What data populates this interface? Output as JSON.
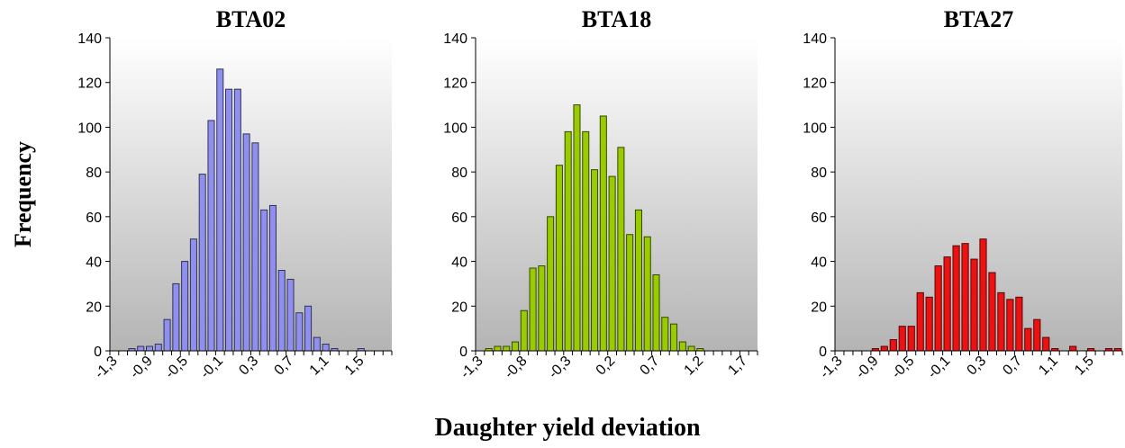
{
  "figure": {
    "ylabel": "Frequency",
    "xlabel": "Daughter yield deviation"
  },
  "chart_data": [
    {
      "type": "bar",
      "title": "BTA02",
      "xlabel": "Daughter yield deviation",
      "ylabel": "Frequency",
      "ylim": [
        0,
        140
      ],
      "yticks": [
        "0",
        "20",
        "40",
        "60",
        "80",
        "100",
        "120",
        "140"
      ],
      "xtick_labels": [
        "-1,3",
        "-0,9",
        "-0,5",
        "-0,1",
        "0,3",
        "0,7",
        "1,1",
        "1,5"
      ],
      "categories": [
        "-1,3",
        "-1,2",
        "-1,1",
        "-1,0",
        "-0,9",
        "-0,8",
        "-0,7",
        "-0,6",
        "-0,5",
        "-0,4",
        "-0,3",
        "-0,2",
        "-0,1",
        "0,0",
        "0,1",
        "0,2",
        "0,3",
        "0,4",
        "0,5",
        "0,6",
        "0,7",
        "0,8",
        "0,9",
        "1,0",
        "1,1",
        "1,2",
        "1,3",
        "1,4",
        "1,5",
        "1,6",
        "1,7",
        "1,8"
      ],
      "values": [
        0,
        0,
        1,
        2,
        2,
        3,
        14,
        30,
        40,
        50,
        79,
        103,
        126,
        117,
        117,
        97,
        93,
        63,
        65,
        36,
        32,
        17,
        20,
        6,
        3,
        1,
        0,
        0,
        1,
        0,
        0,
        0
      ],
      "bar_color": "#8f8fef",
      "grid": false,
      "legend": "none"
    },
    {
      "type": "bar",
      "title": "BTA18",
      "xlabel": "Daughter yield deviation",
      "ylabel": "Frequency",
      "ylim": [
        0,
        140
      ],
      "yticks": [
        "0",
        "20",
        "40",
        "60",
        "80",
        "100",
        "120",
        "140"
      ],
      "xtick_labels": [
        "-1,3",
        "-0,8",
        "-0,3",
        "0,2",
        "0,7",
        "1,2",
        "1,7"
      ],
      "categories": [
        "-1,3",
        "-1,2",
        "-1,1",
        "-1,0",
        "-0,9",
        "-0,8",
        "-0,7",
        "-0,6",
        "-0,5",
        "-0,4",
        "-0,3",
        "-0,2",
        "-0,1",
        "0,0",
        "0,1",
        "0,2",
        "0,3",
        "0,4",
        "0,5",
        "0,6",
        "0,7",
        "0,8",
        "0,9",
        "1,0",
        "1,1",
        "1,2",
        "1,3",
        "1,4",
        "1,5",
        "1,6",
        "1,7",
        "1,8"
      ],
      "values": [
        0,
        1,
        2,
        2,
        4,
        18,
        37,
        38,
        60,
        83,
        98,
        110,
        98,
        81,
        105,
        78,
        91,
        52,
        63,
        51,
        34,
        15,
        12,
        4,
        2,
        1,
        0,
        0,
        0,
        0,
        0,
        0
      ],
      "bar_color": "#99cc00",
      "grid": false,
      "legend": "none"
    },
    {
      "type": "bar",
      "title": "BTA27",
      "xlabel": "Daughter yield deviation",
      "ylabel": "Frequency",
      "ylim": [
        0,
        140
      ],
      "yticks": [
        "0",
        "20",
        "40",
        "60",
        "80",
        "100",
        "120",
        "140"
      ],
      "xtick_labels": [
        "-1,3",
        "-0,9",
        "-0,5",
        "-0,1",
        "0,3",
        "0,7",
        "1,1",
        "1,5"
      ],
      "categories": [
        "-1,3",
        "-1,2",
        "-1,1",
        "-1,0",
        "-0,9",
        "-0,8",
        "-0,7",
        "-0,6",
        "-0,5",
        "-0,4",
        "-0,3",
        "-0,2",
        "-0,1",
        "0,0",
        "0,1",
        "0,2",
        "0,3",
        "0,4",
        "0,5",
        "0,6",
        "0,7",
        "0,8",
        "0,9",
        "1,0",
        "1,1",
        "1,2",
        "1,3",
        "1,4",
        "1,5",
        "1,6",
        "1,7",
        "1,8"
      ],
      "values": [
        0,
        0,
        0,
        0,
        1,
        2,
        5,
        11,
        11,
        26,
        24,
        38,
        42,
        47,
        48,
        41,
        50,
        35,
        26,
        23,
        24,
        10,
        14,
        6,
        1,
        0,
        2,
        0,
        1,
        0,
        1,
        1
      ],
      "bar_color": "#ee1111",
      "grid": false,
      "legend": "none"
    }
  ]
}
